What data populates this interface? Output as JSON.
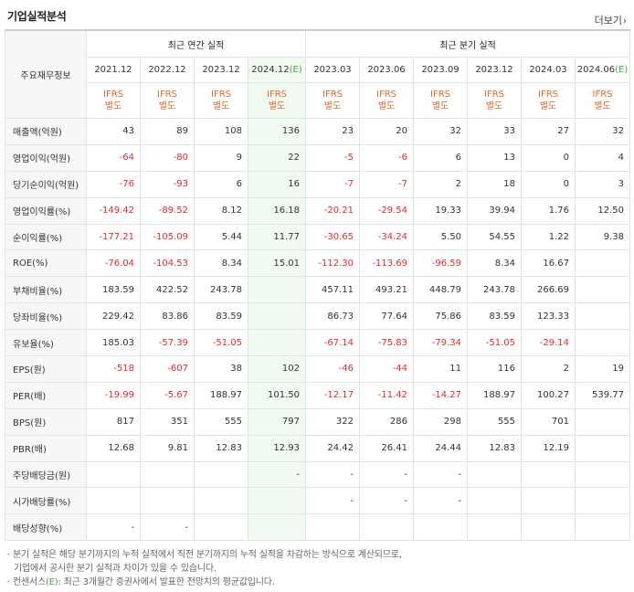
{
  "header": {
    "title": "기업실적분석",
    "more_label": "더보기"
  },
  "table": {
    "row_header": "주요재무정보",
    "groups": {
      "annual": "최근 연간 실적",
      "quarterly": "최근 분기 실적"
    },
    "periods": [
      "2021.12",
      "2022.12",
      "2023.12",
      "2024.12",
      "2023.03",
      "2023.06",
      "2023.09",
      "2023.12",
      "2024.03",
      "2024.06"
    ],
    "estimate_mark": "(E)",
    "ifrs": [
      "IFRS",
      "별도"
    ],
    "rows": [
      {
        "label": "매출액(억원)",
        "values": [
          "43",
          "89",
          "108",
          "136",
          "23",
          "20",
          "32",
          "33",
          "27",
          "32"
        ]
      },
      {
        "label": "영업이익(억원)",
        "values": [
          "-64",
          "-80",
          "9",
          "22",
          "-5",
          "-6",
          "6",
          "13",
          "0",
          "4"
        ]
      },
      {
        "label": "당기순이익(억원)",
        "values": [
          "-76",
          "-93",
          "6",
          "16",
          "-7",
          "-7",
          "2",
          "18",
          "0",
          "3"
        ]
      },
      {
        "label": "영업이익률(%)",
        "values": [
          "-149.42",
          "-89.52",
          "8.12",
          "16.18",
          "-20.21",
          "-29.54",
          "19.33",
          "39.94",
          "1.76",
          "12.50"
        ]
      },
      {
        "label": "순이익률(%)",
        "values": [
          "-177.21",
          "-105.09",
          "5.44",
          "11.77",
          "-30.65",
          "-34.24",
          "5.50",
          "54.55",
          "1.22",
          "9.38"
        ]
      },
      {
        "label": "ROE(%)",
        "values": [
          "-76.04",
          "-104.53",
          "8.34",
          "15.01",
          "-112.30",
          "-113.69",
          "-96.59",
          "8.34",
          "16.67",
          ""
        ]
      },
      {
        "label": "부채비율(%)",
        "values": [
          "183.59",
          "422.52",
          "243.78",
          "",
          "457.11",
          "493.21",
          "448.79",
          "243.78",
          "266.69",
          ""
        ]
      },
      {
        "label": "당좌비율(%)",
        "values": [
          "229.42",
          "83.86",
          "83.59",
          "",
          "86.73",
          "77.64",
          "75.86",
          "83.59",
          "123.33",
          ""
        ]
      },
      {
        "label": "유보율(%)",
        "values": [
          "185.03",
          "-57.39",
          "-51.05",
          "",
          "-67.14",
          "-75.83",
          "-79.34",
          "-51.05",
          "-29.14",
          ""
        ]
      },
      {
        "label": "EPS(원)",
        "values": [
          "-518",
          "-607",
          "38",
          "102",
          "-46",
          "-44",
          "11",
          "116",
          "2",
          "19"
        ]
      },
      {
        "label": "PER(배)",
        "values": [
          "-19.99",
          "-5.67",
          "188.97",
          "101.50",
          "-12.17",
          "-11.42",
          "-14.27",
          "188.97",
          "100.27",
          "539.77"
        ]
      },
      {
        "label": "BPS(원)",
        "values": [
          "817",
          "351",
          "555",
          "797",
          "322",
          "286",
          "298",
          "555",
          "701",
          ""
        ]
      },
      {
        "label": "PBR(배)",
        "values": [
          "12.68",
          "9.81",
          "12.83",
          "12.93",
          "24.42",
          "26.41",
          "24.44",
          "12.83",
          "12.19",
          ""
        ]
      },
      {
        "label": "주당배당금(원)",
        "values": [
          "",
          "",
          "",
          "-",
          "-",
          "-",
          "-",
          "",
          "",
          ""
        ]
      },
      {
        "label": "시가배당률(%)",
        "values": [
          "",
          "",
          "",
          "",
          "-",
          "-",
          "-",
          "",
          "",
          ""
        ]
      },
      {
        "label": "배당성향(%)",
        "values": [
          "-",
          "-",
          "",
          "",
          "",
          "",
          "",
          "",
          "",
          ""
        ]
      }
    ]
  },
  "notes": {
    "line1": "· 분기 실적은 해당 분기까지의 누적 실적에서 직전 분기까지의 누적 실적을 차감하는 방식으로 계산되므로,",
    "line2": "기업에서 공시한 분기 실적과 차이가 있을 수 있습니다.",
    "line3_pre": "· 컨센서스",
    "line3_mark": "(E)",
    "line3_post": ": 최근 3개월간 증권사에서 발표한 전망치의 평균값입니다."
  },
  "colors": {
    "negative": "#e8282c",
    "ifrs": "#e8692a",
    "estimate_bg": "#f1faf0",
    "estimate_mark": "#45a845"
  }
}
